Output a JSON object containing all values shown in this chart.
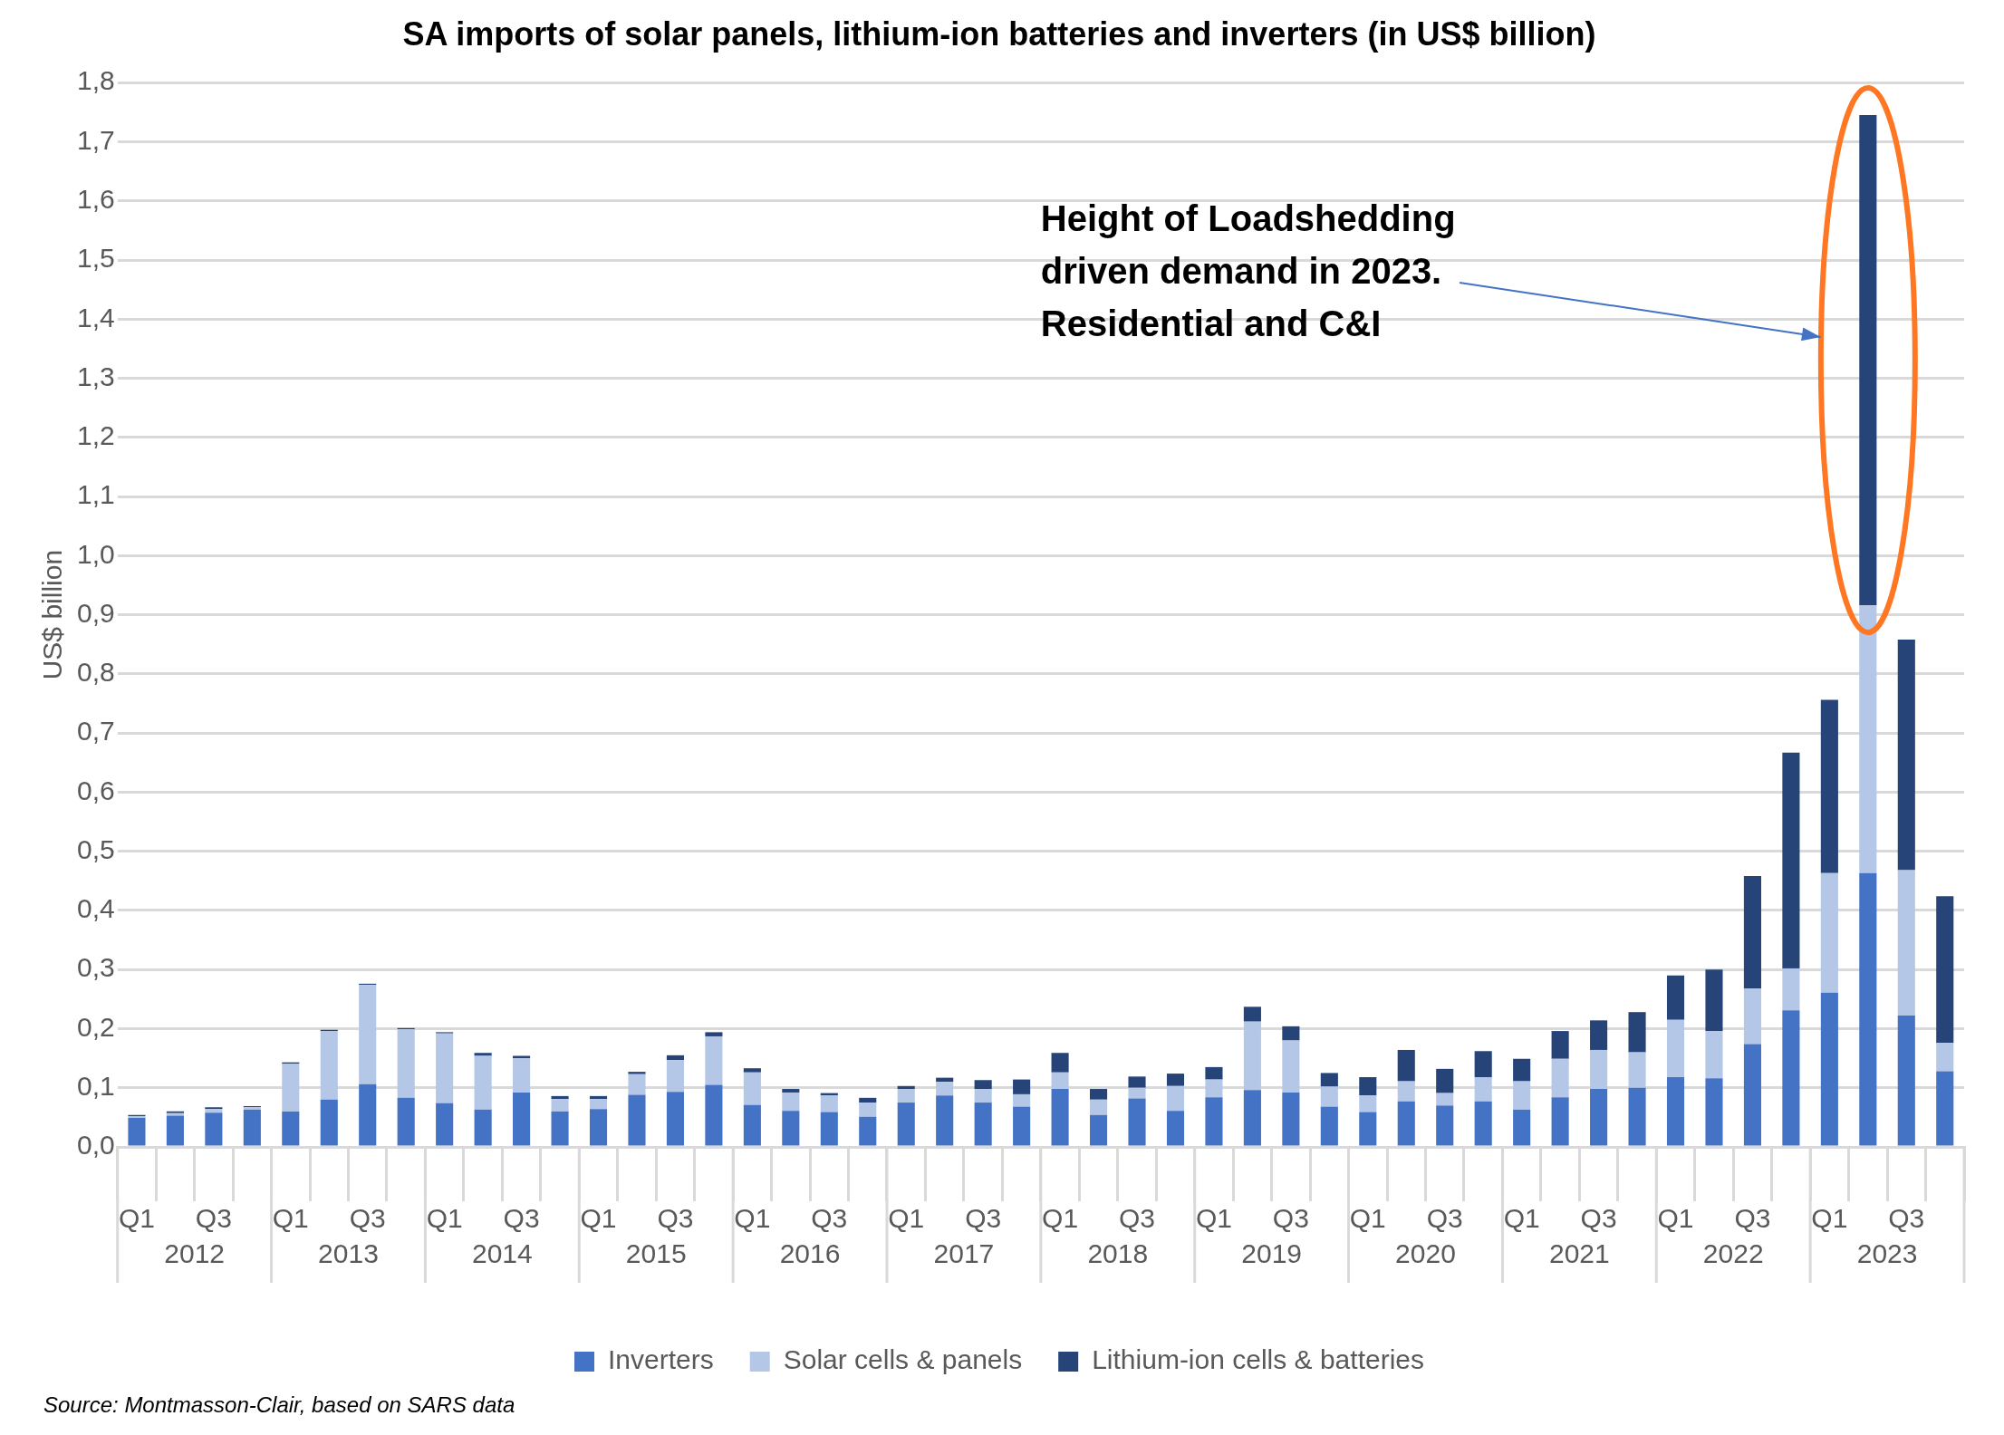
{
  "chart_data": {
    "type": "bar",
    "stacked": true,
    "title": "SA imports of solar panels, lithium-ion batteries and inverters (in US$ billion)",
    "ylabel": "US$ billion",
    "categories": [
      "Q1",
      null,
      "Q3",
      null,
      "Q1",
      null,
      "Q3",
      null,
      "Q1",
      null,
      "Q3",
      null,
      "Q1",
      null,
      "Q3",
      null,
      "Q1",
      null,
      "Q3",
      null,
      "Q1",
      null,
      "Q3",
      null,
      "Q1",
      null,
      "Q3",
      null,
      "Q1",
      null,
      "Q3",
      null,
      "Q1",
      null,
      "Q3",
      null,
      "Q1",
      null,
      "Q3",
      null,
      "Q1",
      null,
      "Q3",
      null,
      "Q1",
      null,
      "Q3",
      null
    ],
    "series": [
      {
        "name": "Inverters",
        "color": "#4472c4",
        "values": [
          0.049,
          0.053,
          0.058,
          0.063,
          0.06,
          0.08,
          0.106,
          0.083,
          0.074,
          0.063,
          0.092,
          0.06,
          0.064,
          0.088,
          0.093,
          0.105,
          0.071,
          0.061,
          0.059,
          0.051,
          0.075,
          0.087,
          0.075,
          0.068,
          0.098,
          0.054,
          0.082,
          0.061,
          0.084,
          0.096,
          0.092,
          0.068,
          0.059,
          0.077,
          0.07,
          0.077,
          0.063,
          0.084,
          0.098,
          0.1,
          0.118,
          0.116,
          0.174,
          0.231,
          0.261,
          0.463,
          0.222,
          0.128
        ]
      },
      {
        "name": "Solar cells & panels",
        "color": "#b4c7e7",
        "values": [
          0.003,
          0.004,
          0.006,
          0.004,
          0.081,
          0.116,
          0.168,
          0.116,
          0.118,
          0.091,
          0.058,
          0.021,
          0.017,
          0.035,
          0.054,
          0.082,
          0.055,
          0.031,
          0.028,
          0.024,
          0.023,
          0.023,
          0.023,
          0.021,
          0.028,
          0.026,
          0.018,
          0.042,
          0.03,
          0.116,
          0.088,
          0.034,
          0.028,
          0.034,
          0.021,
          0.041,
          0.048,
          0.065,
          0.066,
          0.06,
          0.097,
          0.08,
          0.094,
          0.071,
          0.202,
          0.453,
          0.246,
          0.048
        ]
      },
      {
        "name": "Lithium-ion cells & batteries",
        "color": "#264478",
        "values": [
          0.002,
          0.003,
          0.003,
          0.002,
          0.002,
          0.002,
          0.002,
          0.002,
          0.002,
          0.005,
          0.004,
          0.005,
          0.005,
          0.004,
          0.008,
          0.007,
          0.007,
          0.006,
          0.004,
          0.008,
          0.005,
          0.007,
          0.015,
          0.025,
          0.033,
          0.018,
          0.019,
          0.021,
          0.021,
          0.025,
          0.024,
          0.023,
          0.031,
          0.053,
          0.041,
          0.044,
          0.038,
          0.047,
          0.05,
          0.068,
          0.075,
          0.104,
          0.19,
          0.365,
          0.293,
          0.829,
          0.39,
          0.248
        ]
      }
    ],
    "ylim": [
      0,
      1.8
    ],
    "yticks": [
      {
        "value": 0,
        "label": "0,0"
      },
      {
        "value": 0.1,
        "label": "0,1"
      },
      {
        "value": 0.2,
        "label": "0,2"
      },
      {
        "value": 0.3,
        "label": "0,3"
      },
      {
        "value": 0.4,
        "label": "0,4"
      },
      {
        "value": 0.5,
        "label": "0,5"
      },
      {
        "value": 0.6,
        "label": "0,6"
      },
      {
        "value": 0.7,
        "label": "0,7"
      },
      {
        "value": 0.8,
        "label": "0,8"
      },
      {
        "value": 0.9,
        "label": "0,9"
      },
      {
        "value": 1.0,
        "label": "1,0"
      },
      {
        "value": 1.1,
        "label": "1,1"
      },
      {
        "value": 1.2,
        "label": "1,2"
      },
      {
        "value": 1.3,
        "label": "1,3"
      },
      {
        "value": 1.4,
        "label": "1,4"
      },
      {
        "value": 1.5,
        "label": "1,5"
      },
      {
        "value": 1.6,
        "label": "1,6"
      },
      {
        "value": 1.7,
        "label": "1,7"
      },
      {
        "value": 1.8,
        "label": "1,8"
      }
    ],
    "grid": "y",
    "legend": "bottom",
    "annotations": [
      "Height of Loadshedding\ndriven demand in 2023.\nResidential and C&I",
      "2012",
      "2013",
      "2014",
      "2015",
      "2016",
      "2017",
      "2018",
      "2019",
      "2020",
      "2021",
      "2022",
      "2023",
      "Source: Montmasson-Clair, based on SARS data"
    ]
  }
}
